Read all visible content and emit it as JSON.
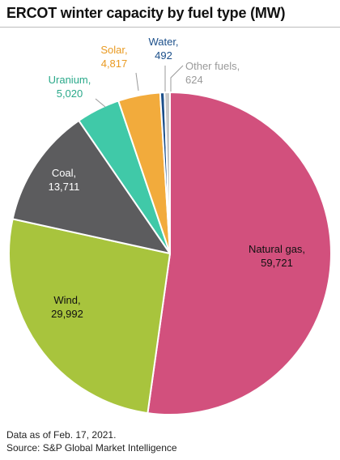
{
  "chart_data": {
    "type": "pie",
    "title": "ERCOT winter capacity by fuel type (MW)",
    "slices": [
      {
        "name": "Natural gas",
        "value": 59721,
        "value_label": "59,721",
        "color": "#d2507d",
        "label_color": "#111111"
      },
      {
        "name": "Wind",
        "value": 29992,
        "value_label": "29,992",
        "color": "#a8c43d",
        "label_color": "#111111"
      },
      {
        "name": "Coal",
        "value": 13711,
        "value_label": "13,711",
        "color": "#5c5c5e",
        "label_color": "#ffffff"
      },
      {
        "name": "Uranium",
        "value": 5020,
        "value_label": "5,020",
        "color": "#40c9a8",
        "label_color": "#2aa98a"
      },
      {
        "name": "Solar",
        "value": 4817,
        "value_label": "4,817",
        "color": "#f2ab3c",
        "label_color": "#e99a22"
      },
      {
        "name": "Water",
        "value": 492,
        "value_label": "492",
        "color": "#1b4f8a",
        "label_color": "#1b4f8a"
      },
      {
        "name": "Other fuels",
        "value": 624,
        "value_label": "624",
        "color": "#c8c8c8",
        "label_color": "#9a9a9a"
      }
    ],
    "legend": "none"
  },
  "footer": {
    "note": "Data as of Feb. 17, 2021.",
    "source": "Source: S&P Global Market Intelligence"
  }
}
